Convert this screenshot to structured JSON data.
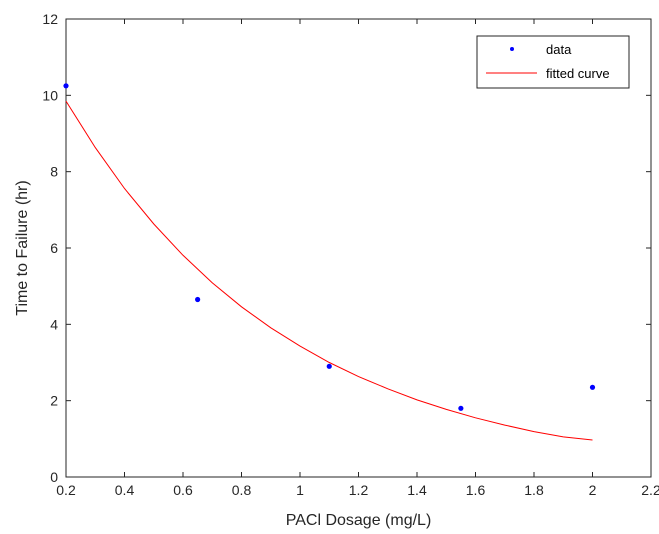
{
  "chart_data": {
    "type": "scatter",
    "xlabel": "PACl Dosage (mg/L)",
    "ylabel": "Time to Failure (hr)",
    "xlim": [
      0.2,
      2.2
    ],
    "ylim": [
      0,
      12
    ],
    "xticks": [
      0.2,
      0.4,
      0.6,
      0.8,
      1,
      1.2,
      1.4,
      1.6,
      1.8,
      2,
      2.2
    ],
    "yticks": [
      0,
      2,
      4,
      6,
      8,
      10,
      12
    ],
    "grid": false,
    "legend_position": "top-right",
    "series": [
      {
        "name": "data",
        "kind": "scatter",
        "color": "#0000ff",
        "x": [
          0.2,
          0.65,
          1.1,
          1.55,
          2.0
        ],
        "y": [
          10.25,
          4.65,
          2.9,
          1.8,
          2.35
        ]
      },
      {
        "name": "fitted curve",
        "kind": "line",
        "color": "#ff0000",
        "x": [
          0.2,
          0.3,
          0.4,
          0.5,
          0.6,
          0.7,
          0.8,
          0.9,
          1.0,
          1.1,
          1.2,
          1.3,
          1.4,
          1.5,
          1.6,
          1.7,
          1.8,
          1.9,
          2.0
        ],
        "y": [
          9.85,
          8.63,
          7.56,
          6.63,
          5.81,
          5.09,
          4.46,
          3.91,
          3.43,
          3.0,
          2.63,
          2.31,
          2.02,
          1.77,
          1.55,
          1.36,
          1.19,
          1.05,
          0.97
        ]
      }
    ]
  }
}
